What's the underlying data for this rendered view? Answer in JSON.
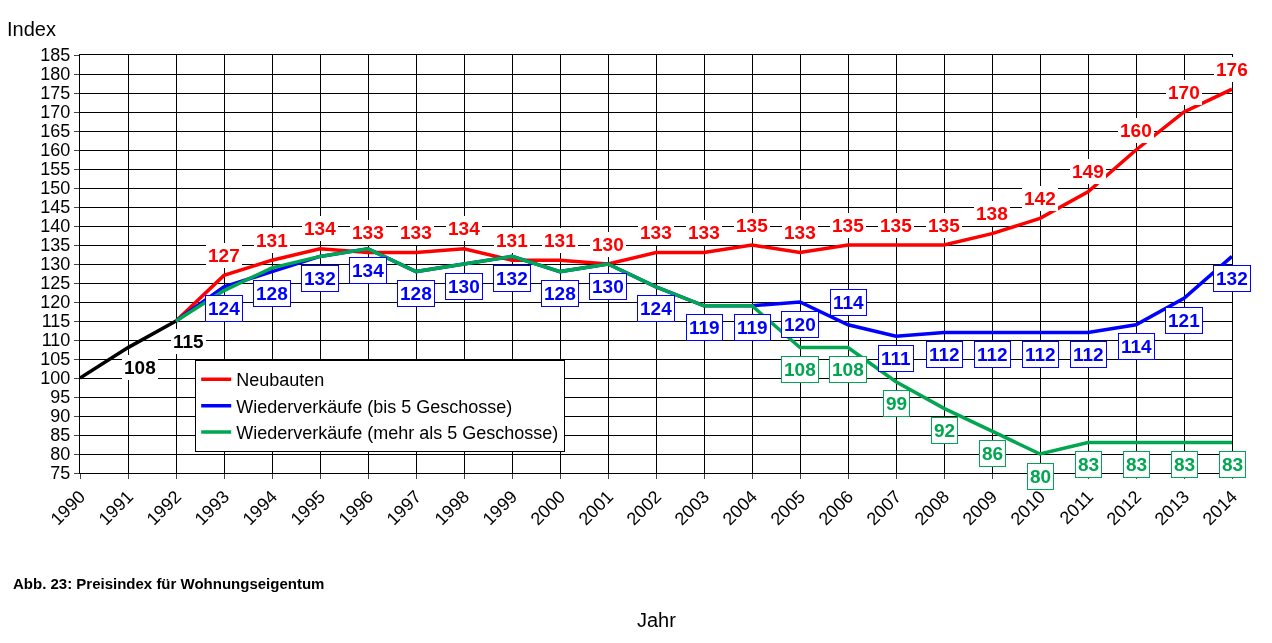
{
  "chart_data": {
    "type": "line",
    "ylabel": "Index",
    "xlabel": "Jahr",
    "annotations": [
      "Abb. 23: Preisindex für Wohnungseigentum"
    ],
    "x": [
      1990,
      1991,
      1992,
      1993,
      1994,
      1995,
      1996,
      1997,
      1998,
      1999,
      2000,
      2001,
      2002,
      2003,
      2004,
      2005,
      2006,
      2007,
      2008,
      2009,
      2010,
      2011,
      2012,
      2013,
      2014
    ],
    "xlim": [
      1990,
      2014
    ],
    "xticks": [
      1990,
      1991,
      1992,
      1993,
      1994,
      1995,
      1996,
      1997,
      1998,
      1999,
      2000,
      2001,
      2002,
      2003,
      2004,
      2005,
      2006,
      2007,
      2008,
      2009,
      2010,
      2011,
      2012,
      2013,
      2014
    ],
    "ylim": [
      75,
      185
    ],
    "yticks": [
      75,
      80,
      85,
      90,
      95,
      100,
      105,
      110,
      115,
      120,
      125,
      130,
      135,
      140,
      145,
      150,
      155,
      160,
      165,
      170,
      175,
      180,
      185
    ],
    "grid": true,
    "legend": "bottom left",
    "marker": "none",
    "line_style": "solid",
    "series": [
      {
        "color": "#000000",
        "values": [
          100,
          108,
          115,
          null,
          null,
          null,
          null,
          null,
          null,
          null,
          null,
          null,
          null,
          null,
          null,
          null,
          null,
          null,
          null,
          null,
          null,
          null,
          null,
          null,
          null
        ],
        "value_labels": [
          null,
          "108",
          "115",
          null,
          null,
          null,
          null,
          null,
          null,
          null,
          null,
          null,
          null,
          null,
          null,
          null,
          null,
          null,
          null,
          null,
          null,
          null,
          null,
          null,
          null
        ]
      },
      {
        "name": "Neubauten",
        "color": "#ff0000",
        "values": [
          null,
          null,
          115,
          127,
          131,
          134,
          133,
          133,
          134,
          131,
          131,
          130,
          133,
          133,
          135,
          133,
          135,
          135,
          135,
          138,
          142,
          149,
          160,
          170,
          176
        ],
        "value_labels": [
          null,
          null,
          null,
          "127",
          "131",
          "134",
          "133",
          "133",
          "134",
          "131",
          "131",
          "130",
          "133",
          "133",
          "135",
          "133",
          "135",
          "135",
          "135",
          "138",
          "142",
          "149",
          "160",
          "170",
          "176"
        ]
      },
      {
        "name": "Wiederverkäufe (bis 5 Geschosse)",
        "color": "#0000ff",
        "values": [
          null,
          null,
          115,
          124,
          128,
          132,
          134,
          128,
          130,
          132,
          128,
          130,
          124,
          119,
          119,
          120,
          114,
          111,
          112,
          112,
          112,
          112,
          114,
          121,
          132
        ],
        "value_labels": [
          null,
          null,
          null,
          "124",
          "128",
          "132",
          "134",
          "128",
          "130",
          "132",
          "128",
          "130",
          "124",
          "119",
          "119",
          "120",
          "114",
          "111",
          "112",
          "112",
          "112",
          "112",
          "114",
          "121",
          "132"
        ]
      },
      {
        "name": "Wiederverkäufe (mehr als 5 Geschosse)",
        "color": "#00a650",
        "values": [
          null,
          null,
          115,
          123,
          129,
          132,
          134,
          128,
          130,
          132,
          128,
          130,
          124,
          119,
          119,
          108,
          108,
          99,
          92,
          86,
          80,
          83,
          83,
          83,
          83
        ],
        "value_labels": [
          null,
          null,
          null,
          null,
          null,
          null,
          null,
          null,
          null,
          null,
          null,
          null,
          null,
          null,
          null,
          "108",
          "108",
          "99",
          "92",
          "86",
          "80",
          "83",
          "83",
          "83",
          "83"
        ]
      }
    ]
  }
}
